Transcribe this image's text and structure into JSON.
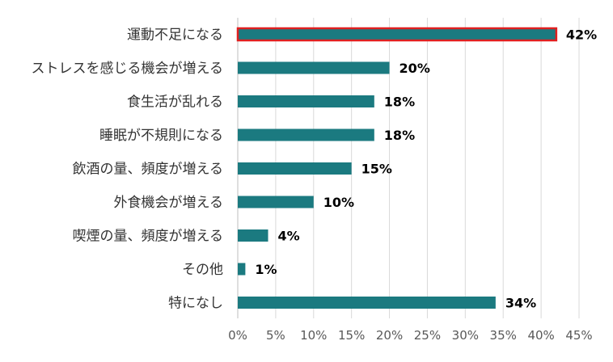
{
  "chart_data": {
    "type": "bar",
    "orientation": "horizontal",
    "categories": [
      "運動不足になる",
      "ストレスを感じる機会が増える",
      "食生活が乱れる",
      "睡眠が不規則になる",
      "飲酒の量、頻度が増える",
      "外食機会が増える",
      "喫煙の量、頻度が増える",
      "その他",
      "特になし"
    ],
    "values": [
      42,
      20,
      18,
      18,
      15,
      10,
      4,
      1,
      34
    ],
    "value_labels": [
      "42%",
      "20%",
      "18%",
      "18%",
      "15%",
      "10%",
      "4%",
      "1%",
      "34%"
    ],
    "x_ticks": [
      "0%",
      "5%",
      "10%",
      "15%",
      "20%",
      "25%",
      "30%",
      "35%",
      "40%",
      "45%"
    ],
    "xlim": [
      0,
      45
    ],
    "grid": "vertical",
    "highlighted_category": "運動不足になる",
    "title": "",
    "xlabel": "",
    "ylabel": "",
    "colors": {
      "bar": "#1b7a80",
      "highlight_outline": "#e02020",
      "grid": "#d9d9d9",
      "axis": "#bfbfbf",
      "category_text": "#333333",
      "tick_text": "#595959",
      "value_text": "#000000"
    }
  }
}
